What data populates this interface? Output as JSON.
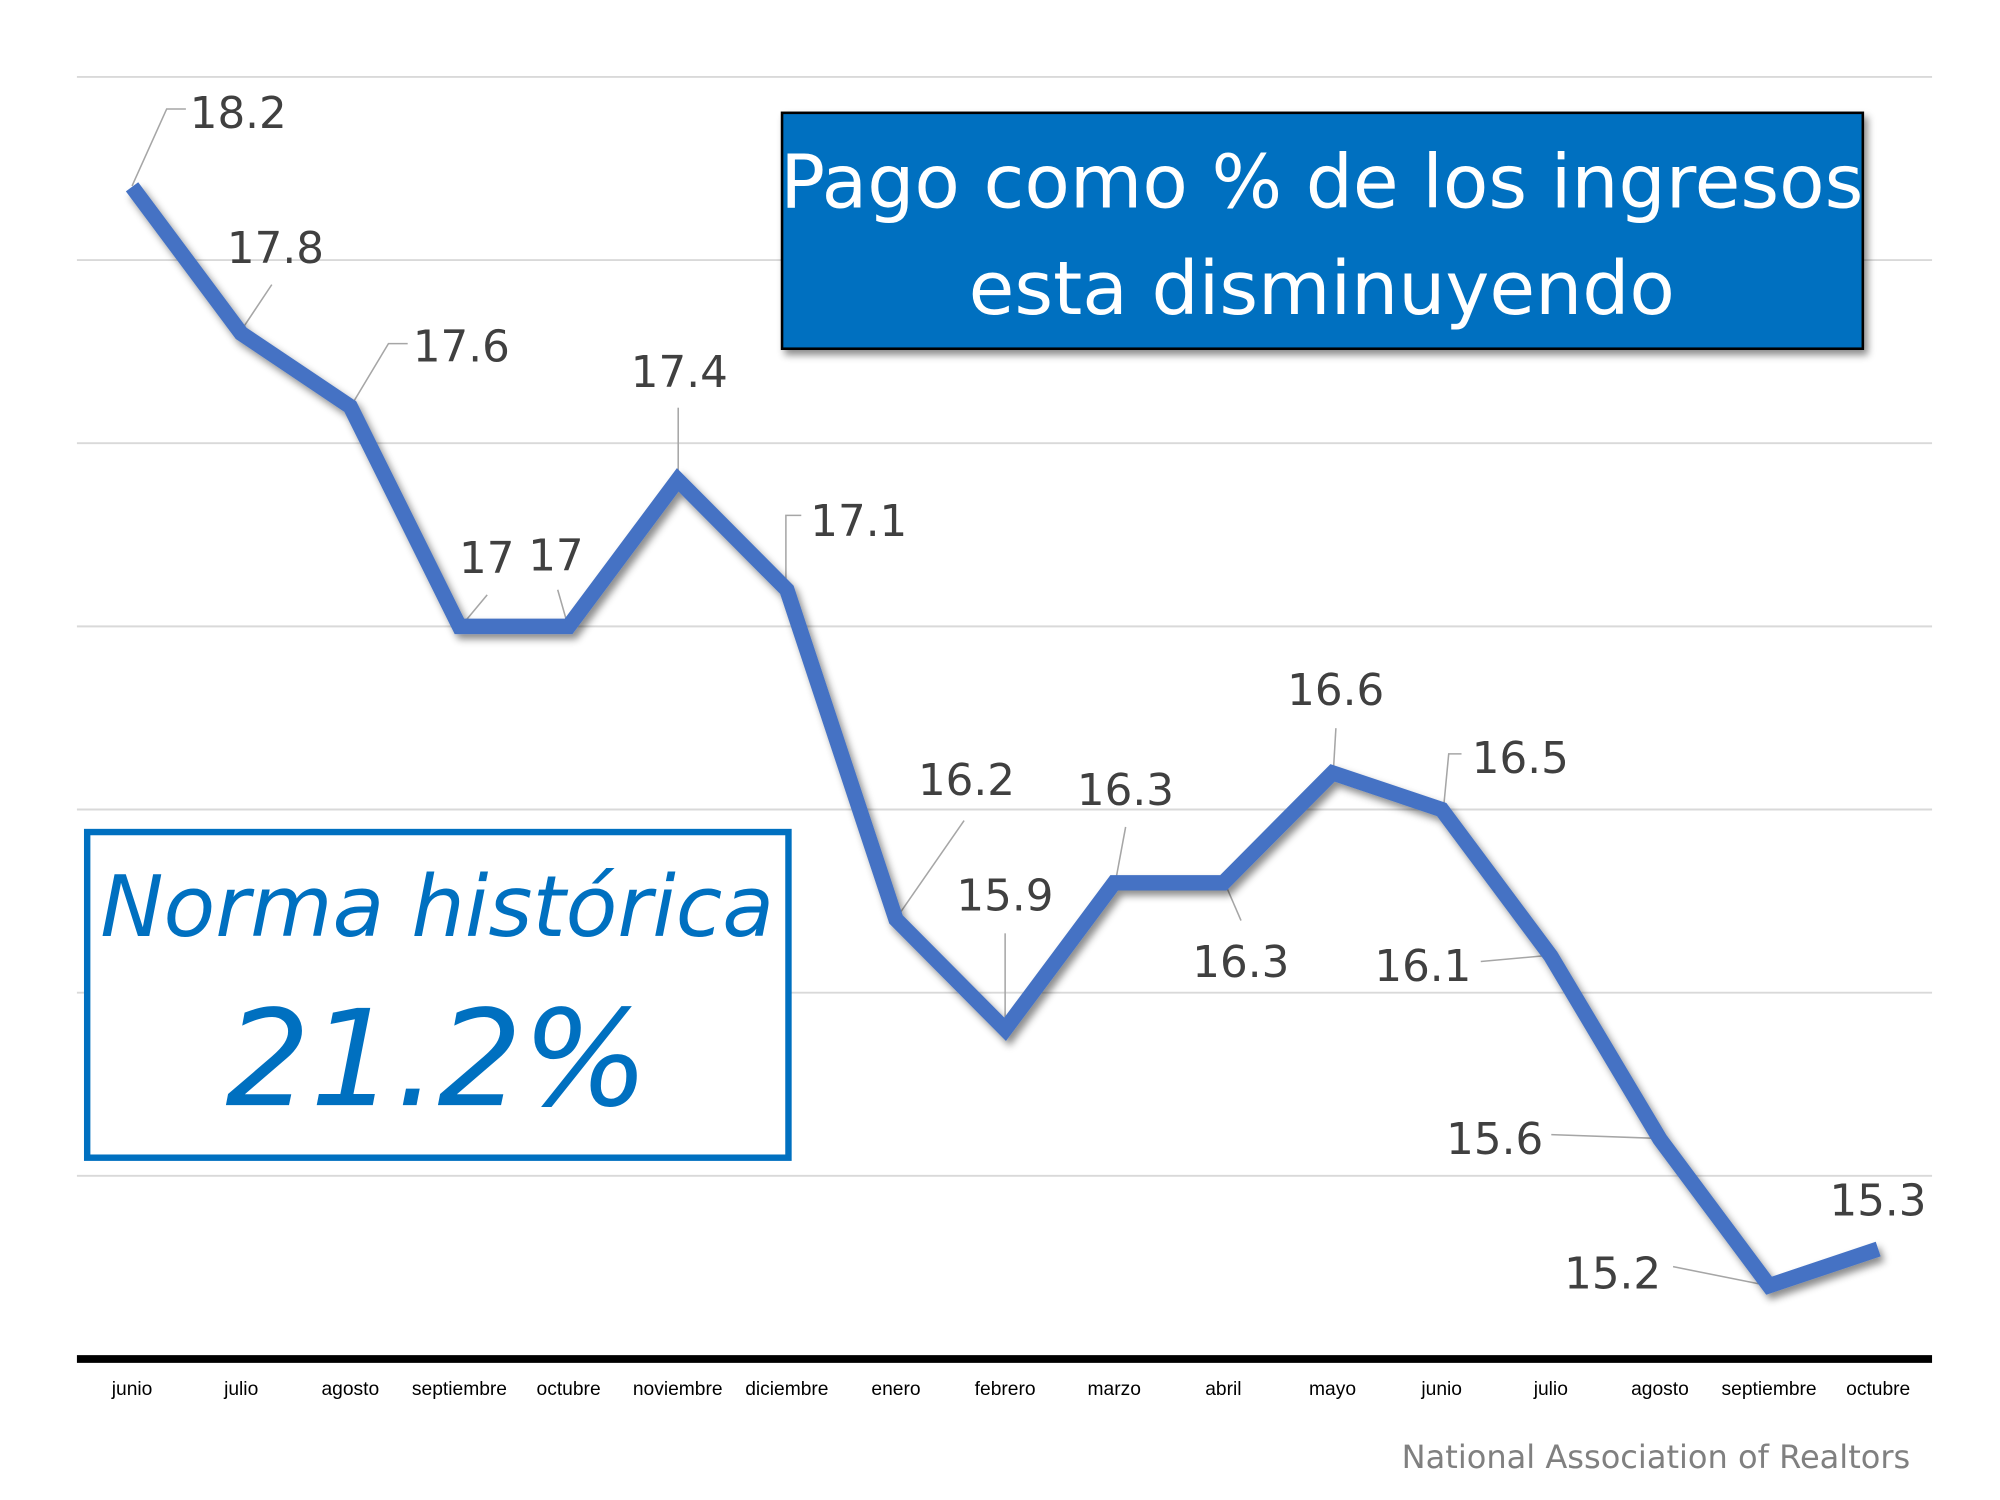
{
  "chart_data": {
    "type": "line",
    "title": "",
    "xlabel": "",
    "ylabel": "",
    "categories": [
      "junio",
      "julio",
      "agosto",
      "septiembre",
      "octubre",
      "noviembre",
      "diciembre",
      "enero",
      "febrero",
      "marzo",
      "abril",
      "mayo",
      "junio",
      "julio",
      "agosto",
      "septiembre",
      "octubre"
    ],
    "series": [
      {
        "values": [
          18.2,
          17.8,
          17.6,
          17,
          17,
          17.4,
          17.1,
          16.2,
          15.9,
          16.3,
          16.3,
          16.6,
          16.5,
          16.1,
          15.6,
          15.2,
          15.3
        ]
      }
    ],
    "data_labels": [
      "18.2",
      "17.8",
      "17.6",
      "17",
      "17",
      "17.4",
      "17.1",
      "16.2",
      "15.9",
      "16.3",
      "16.3",
      "16.6",
      "16.5",
      "16.1",
      "15.6",
      "15.2",
      "15.3"
    ],
    "ylim": [
      15,
      18.5
    ],
    "grid": true,
    "y_tick_labels_visible": false,
    "line_color": "#4472C4"
  },
  "annotations": {
    "title_box": {
      "line1": "Pago como % de los ingresos",
      "line2": "esta disminuyendo",
      "background": "#0070C0"
    },
    "norm_box": {
      "label": "Norma histórica",
      "value": "21.2%",
      "color": "#0070C0"
    },
    "source": "National Association of Realtors"
  }
}
